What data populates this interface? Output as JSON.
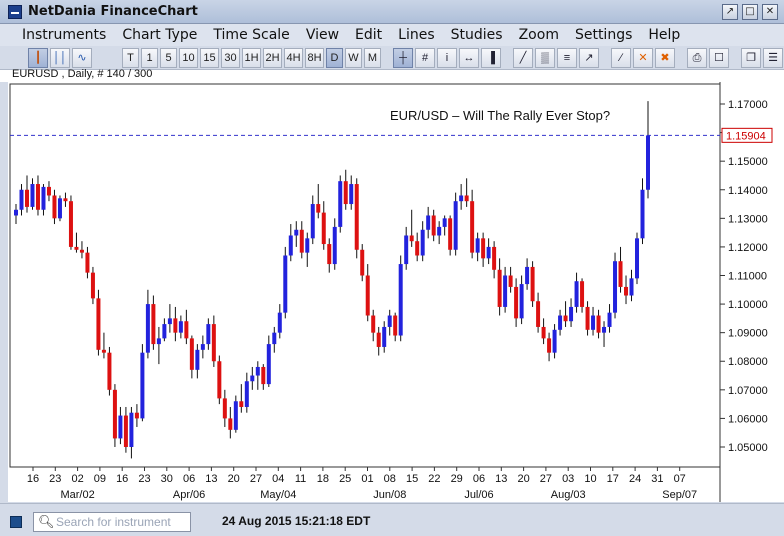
{
  "window": {
    "title": "NetDania FinanceChart",
    "buttons": [
      "↗",
      "□",
      "✕"
    ]
  },
  "menu": [
    "Instruments",
    "Chart Type",
    "Time Scale",
    "View",
    "Edit",
    "Lines",
    "Studies",
    "Zoom",
    "Settings",
    "Help"
  ],
  "toolbar": {
    "chart_types": [
      {
        "id": "candle",
        "icon": "candlestick-icon",
        "active": true
      },
      {
        "id": "bar",
        "icon": "ohlc-bar-icon",
        "active": false
      },
      {
        "id": "line",
        "icon": "line-chart-icon",
        "active": false
      }
    ],
    "timescales": [
      {
        "label": "T",
        "active": false
      },
      {
        "label": "1",
        "active": false
      },
      {
        "label": "5",
        "active": false
      },
      {
        "label": "10",
        "active": false
      },
      {
        "label": "15",
        "active": false
      },
      {
        "label": "30",
        "active": false
      },
      {
        "label": "1H",
        "active": false
      },
      {
        "label": "2H",
        "active": false
      },
      {
        "label": "4H",
        "active": false
      },
      {
        "label": "8H",
        "active": false
      },
      {
        "label": "D",
        "active": true
      },
      {
        "label": "W",
        "active": false
      },
      {
        "label": "M",
        "active": false
      }
    ],
    "tools": [
      {
        "id": "crosshair",
        "icon": "crosshair-icon",
        "active": true
      },
      {
        "id": "grid",
        "icon": "grid-icon",
        "active": false
      },
      {
        "id": "info",
        "icon": "info-icon",
        "active": false
      },
      {
        "id": "scroll",
        "icon": "scroll-icon",
        "active": false
      },
      {
        "id": "volume",
        "icon": "volume-icon",
        "active": false
      },
      {
        "id": "draw1",
        "icon": "draw-line-icon",
        "active": false
      },
      {
        "id": "draw2",
        "icon": "fibonacci-icon",
        "active": false
      },
      {
        "id": "draw3",
        "icon": "channel-icon",
        "active": false
      },
      {
        "id": "draw4",
        "icon": "arrow-tool-icon",
        "active": false
      },
      {
        "id": "line",
        "icon": "trend-line-icon",
        "active": false
      },
      {
        "id": "delete",
        "icon": "delete-icon",
        "active": false
      },
      {
        "id": "delete-all",
        "icon": "delete-all-icon",
        "active": false
      },
      {
        "id": "print",
        "icon": "print-icon",
        "active": false
      },
      {
        "id": "preview",
        "icon": "print-preview-icon",
        "active": false
      },
      {
        "id": "detach",
        "icon": "detach-icon",
        "active": false
      },
      {
        "id": "settings",
        "icon": "settings-panel-icon",
        "active": false
      }
    ]
  },
  "info": "EURUSD , Daily, # 140 / 300",
  "status": {
    "search_placeholder": "Search for instrument",
    "timestamp": "24 Aug 2015 15:21:18 EDT"
  },
  "colors": {
    "up": "#2222dd",
    "down": "#dd1111",
    "ref_line": "#3333cc",
    "price_label": "#cc0000"
  },
  "chart_data": {
    "type": "candlestick",
    "title": "EUR/USD – Will The Rally Ever Stop?",
    "symbol": "EURUSD",
    "timeframe": "Daily",
    "ylim": [
      1.043,
      1.177
    ],
    "yticks": [
      1.05,
      1.06,
      1.07,
      1.08,
      1.09,
      1.1,
      1.11,
      1.12,
      1.13,
      1.14,
      1.15,
      1.16,
      1.17
    ],
    "ytick_labels": [
      "1.05000",
      "1.06000",
      "1.07000",
      "1.08000",
      "1.09000",
      "1.10000",
      "1.11000",
      "1.12000",
      "1.13000",
      "1.14000",
      "1.15000",
      "",
      "1.17000"
    ],
    "current_price": 1.15904,
    "current_price_label": "1.15904",
    "x_day_labels": [
      "16",
      "23",
      "02",
      "09",
      "16",
      "23",
      "30",
      "06",
      "13",
      "20",
      "27",
      "04",
      "11",
      "18",
      "25",
      "01",
      "08",
      "15",
      "22",
      "29",
      "06",
      "13",
      "20",
      "27",
      "03",
      "10",
      "17",
      "24",
      "31",
      "07"
    ],
    "x_month_labels": [
      {
        "label": "Mar/02",
        "at": 2
      },
      {
        "label": "Apr/06",
        "at": 7
      },
      {
        "label": "May/04",
        "at": 11
      },
      {
        "label": "Jun/08",
        "at": 16
      },
      {
        "label": "Jul/06",
        "at": 20
      },
      {
        "label": "Aug/03",
        "at": 24
      },
      {
        "label": "Sep/07",
        "at": 29
      }
    ],
    "grid": false,
    "candles": [
      [
        1.131,
        1.135,
        1.128,
        1.133
      ],
      [
        1.133,
        1.142,
        1.131,
        1.14
      ],
      [
        1.14,
        1.145,
        1.132,
        1.134
      ],
      [
        1.134,
        1.144,
        1.133,
        1.142
      ],
      [
        1.142,
        1.145,
        1.131,
        1.133
      ],
      [
        1.133,
        1.142,
        1.131,
        1.141
      ],
      [
        1.141,
        1.143,
        1.136,
        1.138
      ],
      [
        1.138,
        1.14,
        1.128,
        1.13
      ],
      [
        1.13,
        1.138,
        1.129,
        1.137
      ],
      [
        1.137,
        1.139,
        1.134,
        1.136
      ],
      [
        1.136,
        1.138,
        1.119,
        1.12
      ],
      [
        1.12,
        1.125,
        1.118,
        1.119
      ],
      [
        1.119,
        1.122,
        1.116,
        1.118
      ],
      [
        1.118,
        1.12,
        1.109,
        1.111
      ],
      [
        1.111,
        1.113,
        1.1,
        1.102
      ],
      [
        1.102,
        1.105,
        1.082,
        1.084
      ],
      [
        1.084,
        1.09,
        1.081,
        1.083
      ],
      [
        1.083,
        1.085,
        1.068,
        1.07
      ],
      [
        1.07,
        1.072,
        1.05,
        1.053
      ],
      [
        1.053,
        1.064,
        1.051,
        1.061
      ],
      [
        1.061,
        1.064,
        1.048,
        1.05
      ],
      [
        1.05,
        1.064,
        1.046,
        1.062
      ],
      [
        1.062,
        1.065,
        1.057,
        1.06
      ],
      [
        1.06,
        1.086,
        1.059,
        1.083
      ],
      [
        1.083,
        1.105,
        1.081,
        1.1
      ],
      [
        1.1,
        1.103,
        1.084,
        1.086
      ],
      [
        1.086,
        1.092,
        1.079,
        1.088
      ],
      [
        1.088,
        1.095,
        1.087,
        1.093
      ],
      [
        1.093,
        1.1,
        1.09,
        1.095
      ],
      [
        1.095,
        1.099,
        1.087,
        1.09
      ],
      [
        1.09,
        1.096,
        1.088,
        1.094
      ],
      [
        1.094,
        1.098,
        1.086,
        1.088
      ],
      [
        1.088,
        1.089,
        1.074,
        1.077
      ],
      [
        1.077,
        1.086,
        1.074,
        1.084
      ],
      [
        1.084,
        1.089,
        1.081,
        1.086
      ],
      [
        1.086,
        1.095,
        1.084,
        1.093
      ],
      [
        1.093,
        1.096,
        1.078,
        1.08
      ],
      [
        1.08,
        1.082,
        1.065,
        1.067
      ],
      [
        1.067,
        1.07,
        1.057,
        1.06
      ],
      [
        1.06,
        1.064,
        1.053,
        1.056
      ],
      [
        1.056,
        1.068,
        1.055,
        1.066
      ],
      [
        1.066,
        1.072,
        1.062,
        1.064
      ],
      [
        1.064,
        1.076,
        1.062,
        1.073
      ],
      [
        1.073,
        1.078,
        1.07,
        1.075
      ],
      [
        1.075,
        1.08,
        1.07,
        1.078
      ],
      [
        1.078,
        1.079,
        1.07,
        1.072
      ],
      [
        1.072,
        1.089,
        1.071,
        1.086
      ],
      [
        1.086,
        1.092,
        1.083,
        1.09
      ],
      [
        1.09,
        1.1,
        1.088,
        1.097
      ],
      [
        1.097,
        1.12,
        1.095,
        1.117
      ],
      [
        1.117,
        1.128,
        1.115,
        1.124
      ],
      [
        1.124,
        1.129,
        1.12,
        1.126
      ],
      [
        1.126,
        1.129,
        1.116,
        1.118
      ],
      [
        1.118,
        1.125,
        1.113,
        1.123
      ],
      [
        1.123,
        1.138,
        1.121,
        1.135
      ],
      [
        1.135,
        1.142,
        1.13,
        1.132
      ],
      [
        1.132,
        1.136,
        1.119,
        1.121
      ],
      [
        1.121,
        1.123,
        1.111,
        1.114
      ],
      [
        1.114,
        1.13,
        1.112,
        1.127
      ],
      [
        1.127,
        1.145,
        1.125,
        1.143
      ],
      [
        1.143,
        1.147,
        1.133,
        1.135
      ],
      [
        1.135,
        1.145,
        1.133,
        1.142
      ],
      [
        1.142,
        1.144,
        1.116,
        1.119
      ],
      [
        1.119,
        1.121,
        1.108,
        1.11
      ],
      [
        1.11,
        1.114,
        1.094,
        1.096
      ],
      [
        1.096,
        1.098,
        1.087,
        1.09
      ],
      [
        1.09,
        1.092,
        1.082,
        1.085
      ],
      [
        1.085,
        1.094,
        1.083,
        1.092
      ],
      [
        1.092,
        1.098,
        1.089,
        1.096
      ],
      [
        1.096,
        1.097,
        1.087,
        1.089
      ],
      [
        1.089,
        1.117,
        1.087,
        1.114
      ],
      [
        1.114,
        1.127,
        1.112,
        1.124
      ],
      [
        1.124,
        1.133,
        1.12,
        1.122
      ],
      [
        1.122,
        1.125,
        1.115,
        1.117
      ],
      [
        1.117,
        1.129,
        1.115,
        1.126
      ],
      [
        1.126,
        1.134,
        1.123,
        1.131
      ],
      [
        1.131,
        1.133,
        1.122,
        1.124
      ],
      [
        1.124,
        1.129,
        1.121,
        1.127
      ],
      [
        1.127,
        1.131,
        1.124,
        1.13
      ],
      [
        1.13,
        1.131,
        1.117,
        1.119
      ],
      [
        1.119,
        1.139,
        1.117,
        1.136
      ],
      [
        1.136,
        1.142,
        1.133,
        1.138
      ],
      [
        1.138,
        1.144,
        1.134,
        1.136
      ],
      [
        1.136,
        1.14,
        1.116,
        1.118
      ],
      [
        1.118,
        1.125,
        1.115,
        1.123
      ],
      [
        1.123,
        1.125,
        1.113,
        1.116
      ],
      [
        1.116,
        1.123,
        1.114,
        1.12
      ],
      [
        1.12,
        1.122,
        1.109,
        1.112
      ],
      [
        1.112,
        1.116,
        1.096,
        1.099
      ],
      [
        1.099,
        1.113,
        1.097,
        1.11
      ],
      [
        1.11,
        1.113,
        1.104,
        1.106
      ],
      [
        1.106,
        1.109,
        1.092,
        1.095
      ],
      [
        1.095,
        1.11,
        1.093,
        1.107
      ],
      [
        1.107,
        1.116,
        1.105,
        1.113
      ],
      [
        1.113,
        1.115,
        1.099,
        1.101
      ],
      [
        1.101,
        1.104,
        1.09,
        1.092
      ],
      [
        1.092,
        1.095,
        1.086,
        1.088
      ],
      [
        1.088,
        1.09,
        1.08,
        1.083
      ],
      [
        1.083,
        1.093,
        1.081,
        1.091
      ],
      [
        1.091,
        1.098,
        1.089,
        1.096
      ],
      [
        1.096,
        1.101,
        1.092,
        1.094
      ],
      [
        1.094,
        1.102,
        1.092,
        1.099
      ],
      [
        1.099,
        1.111,
        1.097,
        1.108
      ],
      [
        1.108,
        1.109,
        1.097,
        1.099
      ],
      [
        1.099,
        1.101,
        1.089,
        1.091
      ],
      [
        1.091,
        1.099,
        1.089,
        1.096
      ],
      [
        1.096,
        1.098,
        1.088,
        1.09
      ],
      [
        1.09,
        1.094,
        1.085,
        1.092
      ],
      [
        1.092,
        1.1,
        1.09,
        1.097
      ],
      [
        1.097,
        1.118,
        1.095,
        1.115
      ],
      [
        1.115,
        1.12,
        1.104,
        1.106
      ],
      [
        1.106,
        1.11,
        1.1,
        1.103
      ],
      [
        1.103,
        1.112,
        1.101,
        1.109
      ],
      [
        1.109,
        1.125,
        1.107,
        1.123
      ],
      [
        1.123,
        1.144,
        1.121,
        1.14
      ],
      [
        1.14,
        1.171,
        1.137,
        1.159
      ]
    ]
  }
}
